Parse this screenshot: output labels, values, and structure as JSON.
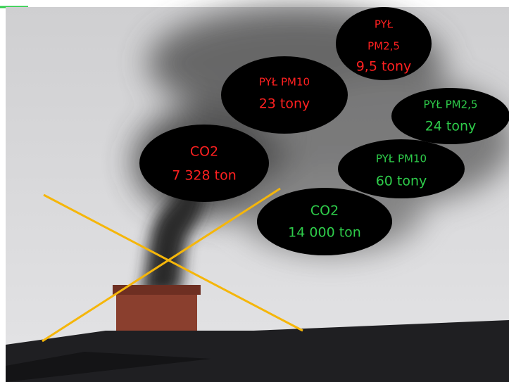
{
  "ellipses": [
    {
      "lines": [
        "PYŁ",
        "PM2,5",
        "9,5 tony"
      ]
    },
    {
      "lines": [
        "PYŁ PM10",
        "23 tony"
      ]
    },
    {
      "lines": [
        "PYŁ PM2,5",
        "24 tony"
      ]
    },
    {
      "lines": [
        "CO2",
        "7 328 ton"
      ]
    },
    {
      "lines": [
        "PYŁ PM10",
        "60 tony"
      ]
    },
    {
      "lines": [
        "CO2",
        "14 000 ton"
      ]
    }
  ]
}
